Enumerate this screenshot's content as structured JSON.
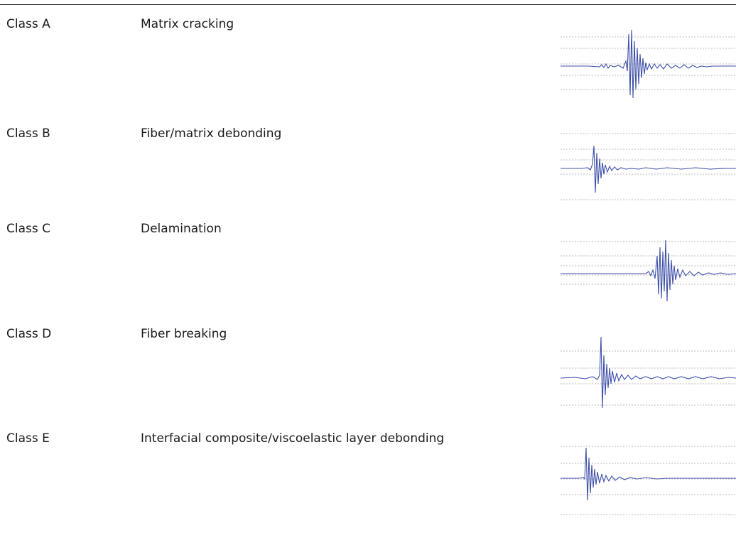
{
  "rows": [
    {
      "class_label": "Class A",
      "description": "Matrix cracking"
    },
    {
      "class_label": "Class B",
      "description": "Fiber/matrix debonding"
    },
    {
      "class_label": "Class C",
      "description": "Delamination"
    },
    {
      "class_label": "Class D",
      "description": "Fiber breaking"
    },
    {
      "class_label": "Class E",
      "description": "Interfacial composite/viscoelastic layer debonding"
    }
  ],
  "colors": {
    "waveform": "#3d4fa8",
    "gridline": "#b8b8b8",
    "text": "#1a1a1a"
  }
}
